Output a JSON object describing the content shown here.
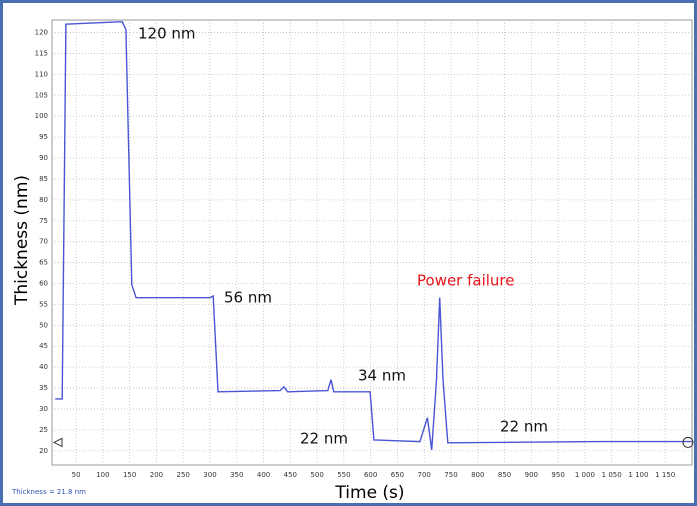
{
  "chart_data": {
    "type": "line",
    "xlabel": "Time (s)",
    "ylabel": "Thickness (nm)",
    "status": "Thickness = 21.8 nm",
    "annotations": [
      "120 nm",
      "56 nm",
      "34 nm",
      "22 nm",
      "22 nm",
      "Power failure"
    ],
    "series": [
      {
        "color": "#4a55d6",
        "x": [
          11,
          24,
          31,
          136,
          143,
          154,
          162,
          300,
          306,
          315,
          431,
          438,
          445,
          520,
          526,
          531,
          599,
          606,
          692,
          706,
          714,
          723,
          729,
          735,
          744,
          1028,
          1199
        ],
        "values": [
          32.4,
          32.4,
          122,
          122.6,
          120.7,
          59.7,
          56.6,
          56.6,
          57,
          34.1,
          34.4,
          35.3,
          34.1,
          34.4,
          37,
          34.1,
          34.1,
          22.6,
          22.2,
          27.9,
          20.2,
          37,
          56.6,
          37,
          21.9,
          22.2,
          22.2
        ]
      }
    ],
    "xlim": [
      5,
      1200
    ],
    "ylim": [
      16.6,
      123
    ],
    "xticks": [
      50,
      100,
      150,
      200,
      250,
      300,
      350,
      400,
      450,
      500,
      550,
      600,
      650,
      700,
      750,
      800,
      850,
      900,
      950,
      {
        "value": 1000,
        "label": "1 000"
      },
      {
        "value": 1050,
        "label": "1 050"
      },
      {
        "value": 1100,
        "label": "1 100"
      },
      {
        "value": 1150,
        "label": "1 150"
      }
    ],
    "yticks": [
      20,
      25,
      30,
      35,
      40,
      45,
      50,
      55,
      60,
      65,
      70,
      75,
      80,
      85,
      90,
      95,
      100,
      105,
      110,
      115,
      120
    ],
    "grid": true
  }
}
